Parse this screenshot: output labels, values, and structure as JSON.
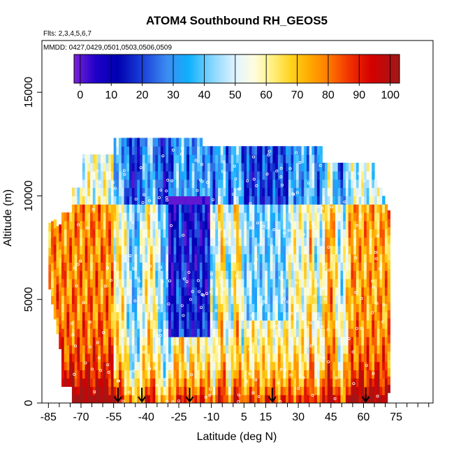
{
  "chart_data": {
    "type": "heatmap",
    "title": "ATOM4 Southbound RH_GEOS5",
    "flights_label": "Flts: 2,3,4,5,6,7",
    "mmdd_label": "MMDD: 0427,0429,0501,0503,0506,0509",
    "xlabel": "Latitude (deg N)",
    "ylabel": "Altitude (m)",
    "xlim": [
      -88,
      92
    ],
    "ylim": [
      0,
      17500
    ],
    "x_ticks": [
      -85,
      -70,
      -55,
      -40,
      -25,
      -10,
      5,
      15,
      30,
      45,
      60,
      75
    ],
    "x_minor_ticks": [
      -80,
      -75,
      -65,
      -60,
      -50,
      -45,
      -35,
      -30,
      -20,
      -15,
      -5,
      0,
      10,
      20,
      25,
      35,
      40,
      50,
      55,
      65,
      70,
      80,
      85,
      90
    ],
    "y_ticks": [
      0,
      5000,
      10000,
      15000
    ],
    "colorbar": {
      "ticks": [
        0,
        10,
        20,
        30,
        40,
        50,
        60,
        70,
        80,
        90,
        100
      ],
      "range": [
        -2,
        103
      ],
      "stops": [
        {
          "v": -2,
          "c": "#7a22d8"
        },
        {
          "v": 5,
          "c": "#1f00c8"
        },
        {
          "v": 12,
          "c": "#0000b0"
        },
        {
          "v": 20,
          "c": "#1a3fd8"
        },
        {
          "v": 28,
          "c": "#3c8cf0"
        },
        {
          "v": 35,
          "c": "#0fb0ff"
        },
        {
          "v": 42,
          "c": "#7fd3ff"
        },
        {
          "v": 50,
          "c": "#e0f4ff"
        },
        {
          "v": 56,
          "c": "#fffde0"
        },
        {
          "v": 62,
          "c": "#fff080"
        },
        {
          "v": 68,
          "c": "#ffd21f"
        },
        {
          "v": 74,
          "c": "#ffaa00"
        },
        {
          "v": 80,
          "c": "#ff7a00"
        },
        {
          "v": 87,
          "c": "#f03000"
        },
        {
          "v": 94,
          "c": "#d40000"
        },
        {
          "v": 103,
          "c": "#a01818"
        }
      ]
    },
    "descent_markers_lat": [
      -53,
      -42,
      -20,
      18,
      61
    ],
    "curtain_lat_range": [
      -85,
      72
    ],
    "curtain_alt_max": 12500
  }
}
